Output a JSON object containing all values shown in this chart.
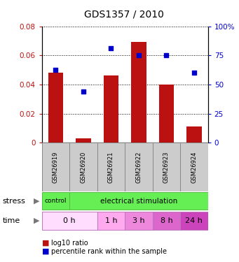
{
  "title": "GDS1357 / 2010",
  "samples": [
    "GSM26919",
    "GSM26920",
    "GSM26921",
    "GSM26922",
    "GSM26923",
    "GSM26924"
  ],
  "bar_values": [
    0.048,
    0.003,
    0.046,
    0.069,
    0.04,
    0.011
  ],
  "percentile_values": [
    62.5,
    43.75,
    81.25,
    75.0,
    75.0,
    60.0
  ],
  "bar_color": "#bb1111",
  "dot_color": "#0000cc",
  "ylim_left": [
    0,
    0.08
  ],
  "ylim_right": [
    0,
    100
  ],
  "yticks_left": [
    0,
    0.02,
    0.04,
    0.06,
    0.08
  ],
  "ytick_labels_left": [
    "0",
    "0.02",
    "0.04",
    "0.06",
    "0.08"
  ],
  "yticks_right": [
    0,
    25,
    50,
    75,
    100
  ],
  "ytick_labels_right": [
    "0",
    "25",
    "50",
    "75",
    "100%"
  ],
  "legend_bar_label": "log10 ratio",
  "legend_dot_label": "percentile rank within the sample",
  "title_fontsize": 10,
  "tick_fontsize": 7.5,
  "sample_label_fontsize": 6,
  "stress_fontsize": 8,
  "time_fontsize": 8,
  "legend_fontsize": 7,
  "sample_box_color": "#cccccc",
  "sample_box_edge": "#888888",
  "stress_green": "#66ee55",
  "time_colors": [
    "#ffddff",
    "#ffaaee",
    "#ee88dd",
    "#dd66cc",
    "#cc44bb"
  ],
  "time_edge": "#cc88cc"
}
